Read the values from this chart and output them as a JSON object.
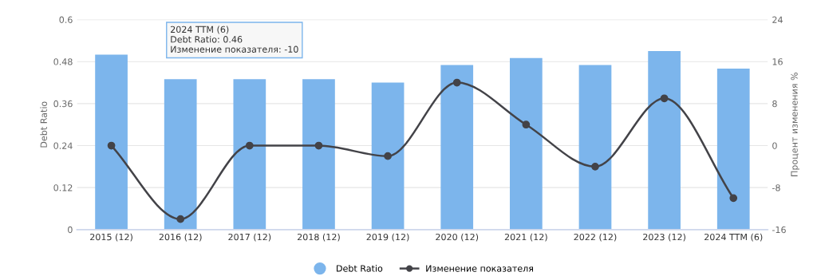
{
  "chart_data": {
    "type": "bar",
    "categories": [
      "2015 (12)",
      "2016 (12)",
      "2017 (12)",
      "2018 (12)",
      "2019 (12)",
      "2020 (12)",
      "2021 (12)",
      "2022 (12)",
      "2023 (12)",
      "2024 TTM (6)"
    ],
    "series": [
      {
        "name": "Debt Ratio",
        "color": "#7cb5ec",
        "values": [
          0.5,
          0.43,
          0.43,
          0.43,
          0.42,
          0.47,
          0.49,
          0.47,
          0.51,
          0.46
        ]
      },
      {
        "name": "Изменение показателя",
        "type": "line",
        "axis": "y2",
        "color": "#434348",
        "marker": "circle",
        "values": [
          0,
          -14,
          0,
          0,
          -2,
          12,
          4,
          -4,
          9,
          -10
        ]
      }
    ],
    "ylabel": "Debt Ratio",
    "y2label": "Процент изменения %",
    "ylim": [
      0,
      0.6
    ],
    "yticks": [
      0,
      0.12,
      0.24,
      0.36,
      0.48,
      0.6
    ],
    "y2lim": [
      -16,
      24
    ],
    "y2ticks": [
      -16,
      -8,
      0,
      8,
      16,
      24
    ],
    "grid": "y",
    "legend": "bottom",
    "annotations": [
      "2024 TTM (6)",
      "Debt Ratio: 0.46",
      "Изменение показателя: -10"
    ]
  }
}
